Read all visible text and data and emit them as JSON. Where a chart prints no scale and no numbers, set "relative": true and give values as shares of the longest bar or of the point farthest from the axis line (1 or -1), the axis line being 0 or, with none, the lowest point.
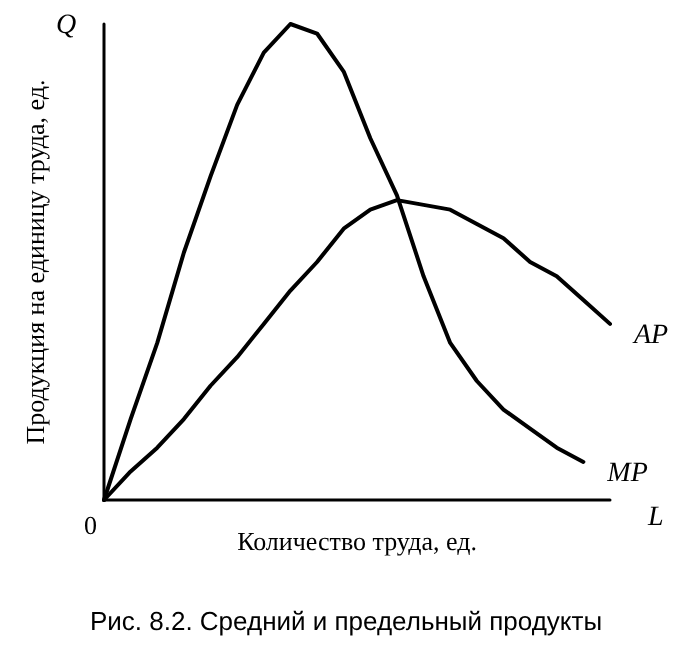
{
  "chart_data": {
    "type": "line",
    "title": "Рис. 8.2. Средний и предельный продукты",
    "xlabel": "Количество труда, ед.",
    "ylabel": "Продукция на единицу труда, ед.",
    "annotations": [
      "0",
      "Q",
      "L"
    ],
    "relative": true,
    "categories": [
      null,
      null,
      null,
      null,
      null,
      null,
      null,
      null,
      null,
      null,
      null,
      null,
      null,
      null,
      null,
      null,
      null,
      null,
      null,
      null
    ],
    "series": [
      {
        "name": "AP",
        "color": "#000000",
        "values": [
          0,
          0.06,
          0.11,
          0.17,
          0.24,
          0.3,
          0.37,
          0.44,
          0.5,
          0.57,
          0.61,
          0.63,
          0.62,
          0.61,
          0.58,
          0.55,
          0.5,
          0.47,
          0.42,
          0.37
        ]
      },
      {
        "name": "MP",
        "color": "#000000",
        "values": [
          0,
          0.17,
          0.33,
          0.52,
          0.68,
          0.83,
          0.94,
          1.0,
          0.98,
          0.9,
          0.76,
          0.64,
          0.47,
          0.33,
          0.25,
          0.19,
          0.15,
          0.11,
          0.08,
          null
        ]
      }
    ],
    "legend": false,
    "grid": false,
    "marker": "none",
    "line_style": "solid"
  }
}
